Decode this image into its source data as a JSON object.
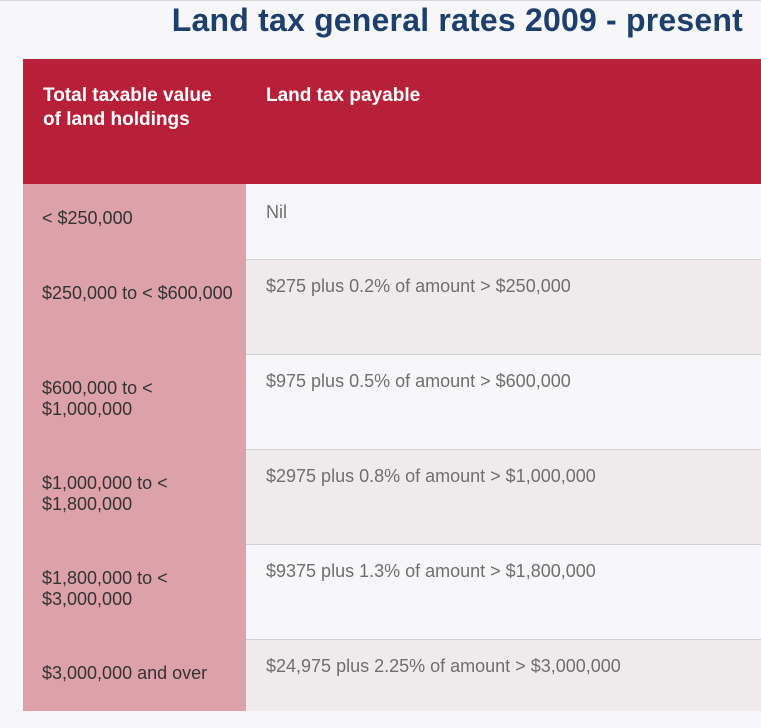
{
  "title": "Land tax general rates 2009 - present",
  "colors": {
    "title": "#1d3f6e",
    "header_background": "#b81f38",
    "first_column_background": "#dda1a9",
    "alt_row_background": "#efeaeb"
  },
  "table": {
    "headers": [
      "Total taxable value of land holdings",
      "Land tax payable"
    ],
    "rows": [
      {
        "value": "< $250,000",
        "tax": "Nil"
      },
      {
        "value": "$250,000 to < $600,000",
        "tax": "$275 plus 0.2% of amount > $250,000"
      },
      {
        "value": "$600,000 to < $1,000,000",
        "tax": "$975 plus 0.5% of amount > $600,000"
      },
      {
        "value": "$1,000,000 to < $1,800,000",
        "tax": "$2975 plus 0.8% of amount > $1,000,000"
      },
      {
        "value": "$1,800,000 to < $3,000,000",
        "tax": "$9375 plus 1.3% of amount > $1,800,000"
      },
      {
        "value": "$3,000,000 and over",
        "tax": "$24,975 plus 2.25% of amount > $3,000,000"
      }
    ]
  }
}
